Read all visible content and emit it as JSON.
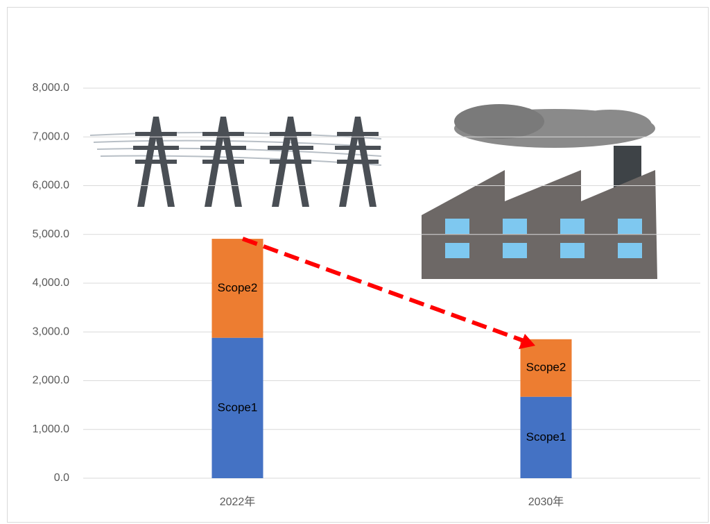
{
  "chart_data": {
    "type": "stacked_bar",
    "categories": [
      "2022年",
      "2030年"
    ],
    "series": [
      {
        "name": "Scope1",
        "color": "#4472c4",
        "values": [
          2880,
          1670
        ]
      },
      {
        "name": "Scope2",
        "color": "#ed7d31",
        "values": [
          2030,
          1180
        ]
      }
    ],
    "ylim": [
      0,
      8000
    ],
    "yticks": [
      {
        "value": 0,
        "label": "0.0"
      },
      {
        "value": 1000,
        "label": "1,000.0"
      },
      {
        "value": 2000,
        "label": "2,000.0"
      },
      {
        "value": 3000,
        "label": "3,000.0"
      },
      {
        "value": 4000,
        "label": "4,000.0"
      },
      {
        "value": 5000,
        "label": "5,000.0"
      },
      {
        "value": 6000,
        "label": "6,000.0"
      },
      {
        "value": 7000,
        "label": "7,000.0"
      },
      {
        "value": 8000,
        "label": "8,000.0"
      }
    ],
    "grid": true
  }
}
